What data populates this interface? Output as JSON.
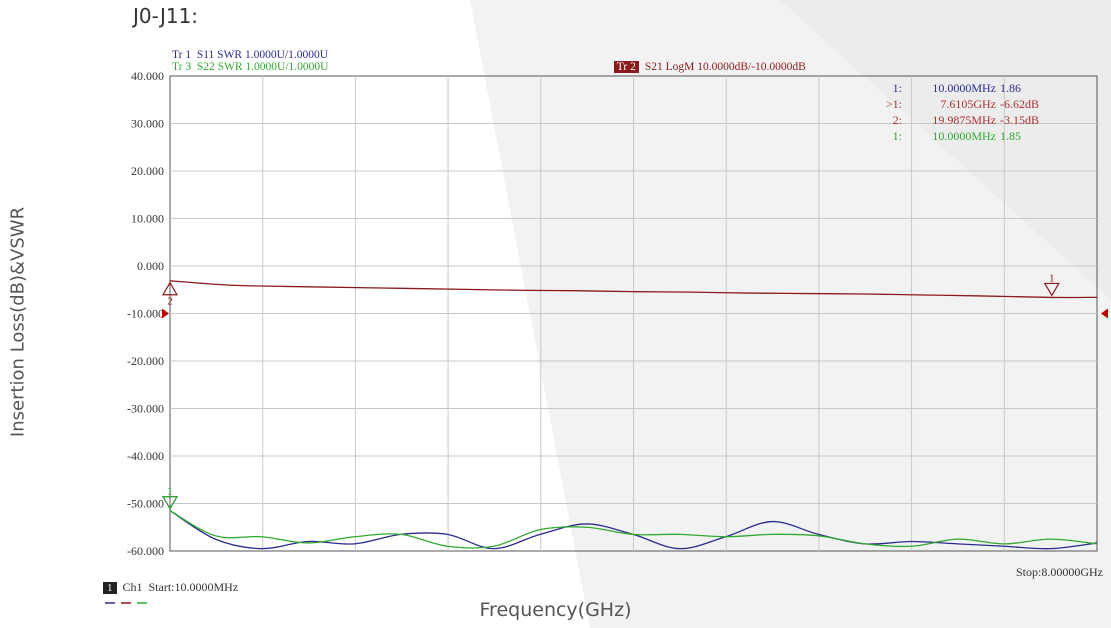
{
  "page_title": "J0-J11:",
  "ylabel": "Insertion Loss(dB)&VSWR",
  "xlabel": "Frequency(GHz)",
  "trace_headers": {
    "tr1": "Tr 1  S11 SWR 1.0000U/1.0000U",
    "tr3": "Tr 3  S22 SWR 1.0000U/1.0000U",
    "tr2_tag": "Tr 2",
    "tr2": "S21 LogM 10.0000dB/-10.0000dB"
  },
  "markers": [
    {
      "id": "1:",
      "freq": "10.0000MHz",
      "value": "1.86",
      "color": "#2b2b8f"
    },
    {
      "id": ">1:",
      "freq": "7.6105GHz",
      "value": "-6.62dB",
      "color": "#a83232"
    },
    {
      "id": "2:",
      "freq": "19.9875MHz",
      "value": "-3.15dB",
      "color": "#a83232"
    },
    {
      "id": "1:",
      "freq": "10.0000MHz",
      "value": "1.85",
      "color": "#2faa2f"
    }
  ],
  "footer": {
    "channel_box": "1",
    "channel": "Ch1  Start:10.0000MHz",
    "stop": "Stop:8.00000GHz"
  },
  "colors": {
    "s11": "#2b2b8f",
    "s21": "#8b1a1a",
    "s22": "#2faa2f",
    "grid": "#c8c8c8",
    "reference_arrow": "#c00000"
  },
  "chart_data": {
    "type": "line",
    "title": "",
    "xlabel": "Frequency(GHz)",
    "ylabel": "Insertion Loss(dB)&VSWR",
    "xlim": [
      0.01,
      8.0
    ],
    "ylim": [
      -60,
      40
    ],
    "y_ticks": [
      "40.000",
      "30.000",
      "20.000",
      "10.000",
      "0.000",
      "-10.000",
      "-20.000",
      "-30.000",
      "-40.000",
      "-50.000",
      "-60.000"
    ],
    "grid": true,
    "series": [
      {
        "name": "S11 SWR",
        "x": [
          0.01,
          0.4,
          0.8,
          1.2,
          1.6,
          2.0,
          2.4,
          2.8,
          3.2,
          3.6,
          4.0,
          4.4,
          4.8,
          5.2,
          5.6,
          6.0,
          6.4,
          6.8,
          7.2,
          7.6,
          8.0
        ],
        "values": [
          -51.5,
          -57.5,
          -59.5,
          -58.0,
          -58.5,
          -56.5,
          -56.5,
          -59.5,
          -56.5,
          -54.3,
          -56.5,
          -59.5,
          -57.0,
          -53.8,
          -56.5,
          -58.5,
          -58.0,
          -58.5,
          -59.0,
          -59.5,
          -58.3
        ]
      },
      {
        "name": "S21 LogM",
        "x": [
          0.01,
          0.5,
          1.0,
          1.5,
          2.0,
          2.5,
          3.0,
          3.5,
          4.0,
          4.5,
          5.0,
          5.5,
          6.0,
          6.5,
          7.0,
          7.6105,
          8.0
        ],
        "values": [
          -3.1,
          -4.0,
          -4.3,
          -4.5,
          -4.7,
          -4.9,
          -5.1,
          -5.2,
          -5.4,
          -5.5,
          -5.7,
          -5.8,
          -5.9,
          -6.1,
          -6.3,
          -6.62,
          -6.6
        ]
      },
      {
        "name": "S22 SWR",
        "x": [
          0.01,
          0.4,
          0.8,
          1.2,
          1.6,
          2.0,
          2.4,
          2.8,
          3.2,
          3.6,
          4.0,
          4.4,
          4.8,
          5.2,
          5.6,
          6.0,
          6.4,
          6.8,
          7.2,
          7.6,
          8.0
        ],
        "values": [
          -51.5,
          -56.8,
          -57.0,
          -58.3,
          -57.0,
          -56.5,
          -59.0,
          -59.0,
          -55.5,
          -55.0,
          -56.5,
          -56.5,
          -57.0,
          -56.5,
          -56.8,
          -58.5,
          -59.0,
          -57.5,
          -58.5,
          -57.5,
          -58.5
        ]
      }
    ],
    "markers": [
      {
        "series": "S11 SWR",
        "label": "1",
        "x": 0.01
      },
      {
        "series": "S21 LogM",
        "label": "2",
        "x": 0.01
      },
      {
        "series": "S21 LogM",
        "label": "1",
        "x": 7.6105
      },
      {
        "series": "S22 SWR",
        "label": "1",
        "x": 0.01
      }
    ],
    "reference_level": -10
  }
}
